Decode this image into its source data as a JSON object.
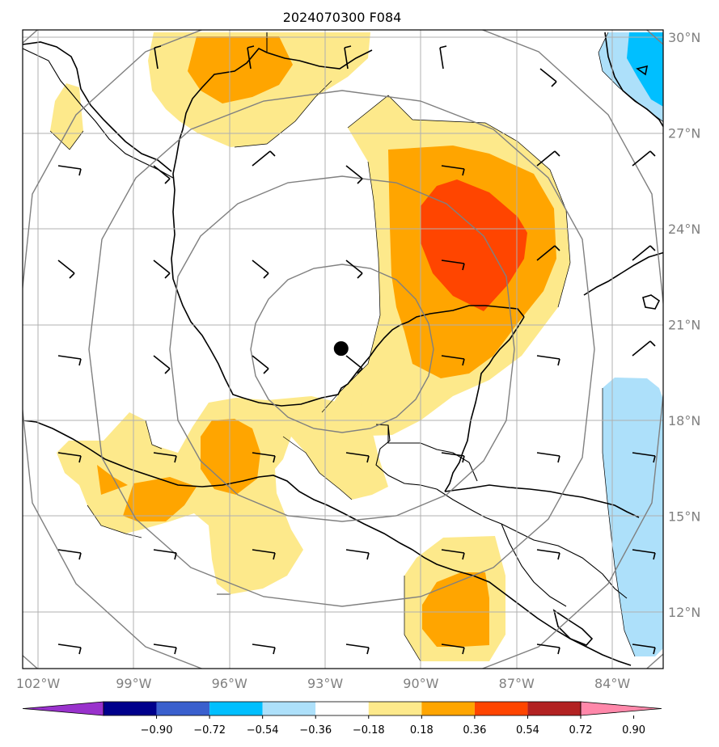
{
  "title": "2024070300 F084",
  "map": {
    "extent": {
      "lon": [
        -102.5,
        -82.5
      ],
      "lat": [
        10.2,
        30.2
      ]
    },
    "lat_ticks": [
      {
        "value": 30,
        "label": "30°N"
      },
      {
        "value": 27,
        "label": "27°N"
      },
      {
        "value": 24,
        "label": "24°N"
      },
      {
        "value": 21,
        "label": "21°N"
      },
      {
        "value": 18,
        "label": "18°N"
      },
      {
        "value": 15,
        "label": "15°N"
      },
      {
        "value": 12,
        "label": "12°N"
      }
    ],
    "lon_ticks": [
      {
        "value": -102,
        "label": "102°W"
      },
      {
        "value": -99,
        "label": "99°W"
      },
      {
        "value": -96,
        "label": "96°W"
      },
      {
        "value": -93,
        "label": "93°W"
      },
      {
        "value": -90,
        "label": "90°W"
      },
      {
        "value": -87,
        "label": "87°W"
      },
      {
        "value": -84,
        "label": "84°W"
      }
    ],
    "grid": true,
    "center_point": {
      "lon": -92.5,
      "lat": 20.25
    },
    "range_rings": {
      "center_lon": -92.5,
      "center_lat": 20.25,
      "count": 5
    }
  },
  "colorbar": {
    "labels": [
      "−0.90",
      "−0.72",
      "−0.54",
      "−0.36",
      "−0.18",
      "0.18",
      "0.36",
      "0.54",
      "0.72",
      "0.90"
    ],
    "colors": [
      "#9932CC",
      "#00008B",
      "#3A5FCD",
      "#00BFFF",
      "#ADE0FA",
      "#FFFFFF",
      "#FDE98B",
      "#FFA500",
      "#FF4500",
      "#B22222",
      "#FF88AA"
    ]
  },
  "colors": {
    "light_yellow": "#FDE98B",
    "orange": "#FFA500",
    "red_orange": "#FF4500",
    "light_blue": "#ADE0FA",
    "deep_sky_blue": "#00BFFF"
  }
}
